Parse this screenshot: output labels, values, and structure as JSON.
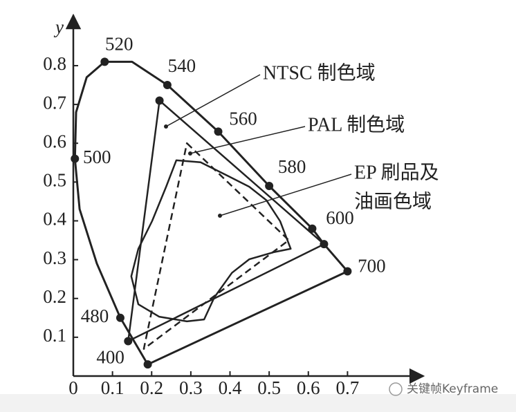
{
  "chart_data": {
    "type": "chromaticity",
    "y_label": "y",
    "xlim": [
      0,
      0.89
    ],
    "ylim": [
      0,
      0.93
    ],
    "xticks": [
      0,
      0.1,
      0.2,
      0.3,
      0.4,
      0.5,
      0.6,
      0.7
    ],
    "yticks": [
      0.1,
      0.2,
      0.3,
      0.4,
      0.5,
      0.6,
      0.7,
      0.8
    ],
    "locus": {
      "x": [
        0.19,
        0.12,
        0.06,
        0.016,
        0.004,
        0.007,
        0.034,
        0.08,
        0.15,
        0.24,
        0.37,
        0.5,
        0.61,
        0.64,
        0.7
      ],
      "y": [
        0.03,
        0.15,
        0.29,
        0.43,
        0.56,
        0.68,
        0.77,
        0.81,
        0.81,
        0.75,
        0.63,
        0.49,
        0.38,
        0.34,
        0.27
      ],
      "labels": [
        "400",
        "480",
        null,
        null,
        "500",
        null,
        null,
        "520",
        null,
        "540",
        "560",
        "580",
        "600",
        null,
        "700"
      ]
    },
    "gamuts": [
      {
        "name": [
          "NTSC 制色域"
        ],
        "x": [
          0.22,
          0.64,
          0.14
        ],
        "y": [
          0.71,
          0.34,
          0.09
        ],
        "dashed": false,
        "markers": true
      },
      {
        "name": [
          "PAL 制色域"
        ],
        "x": [
          0.29,
          0.55,
          0.18
        ],
        "y": [
          0.6,
          0.35,
          0.07
        ],
        "dashed": true,
        "markers": false
      },
      {
        "name": [
          "EP 刷品及",
          "油画色域"
        ],
        "x": [
          0.263,
          0.325,
          0.396,
          0.449,
          0.493,
          0.528,
          0.555,
          0.511,
          0.449,
          0.405,
          0.36,
          0.334,
          0.29,
          0.219,
          0.166,
          0.148,
          0.166,
          0.201,
          0.237
        ],
        "y": [
          0.556,
          0.551,
          0.515,
          0.488,
          0.453,
          0.399,
          0.328,
          0.319,
          0.301,
          0.266,
          0.203,
          0.146,
          0.141,
          0.153,
          0.185,
          0.257,
          0.328,
          0.399,
          0.488
        ],
        "dashed": false,
        "markers": false
      }
    ],
    "watermark": "关键帧Keyframe"
  }
}
